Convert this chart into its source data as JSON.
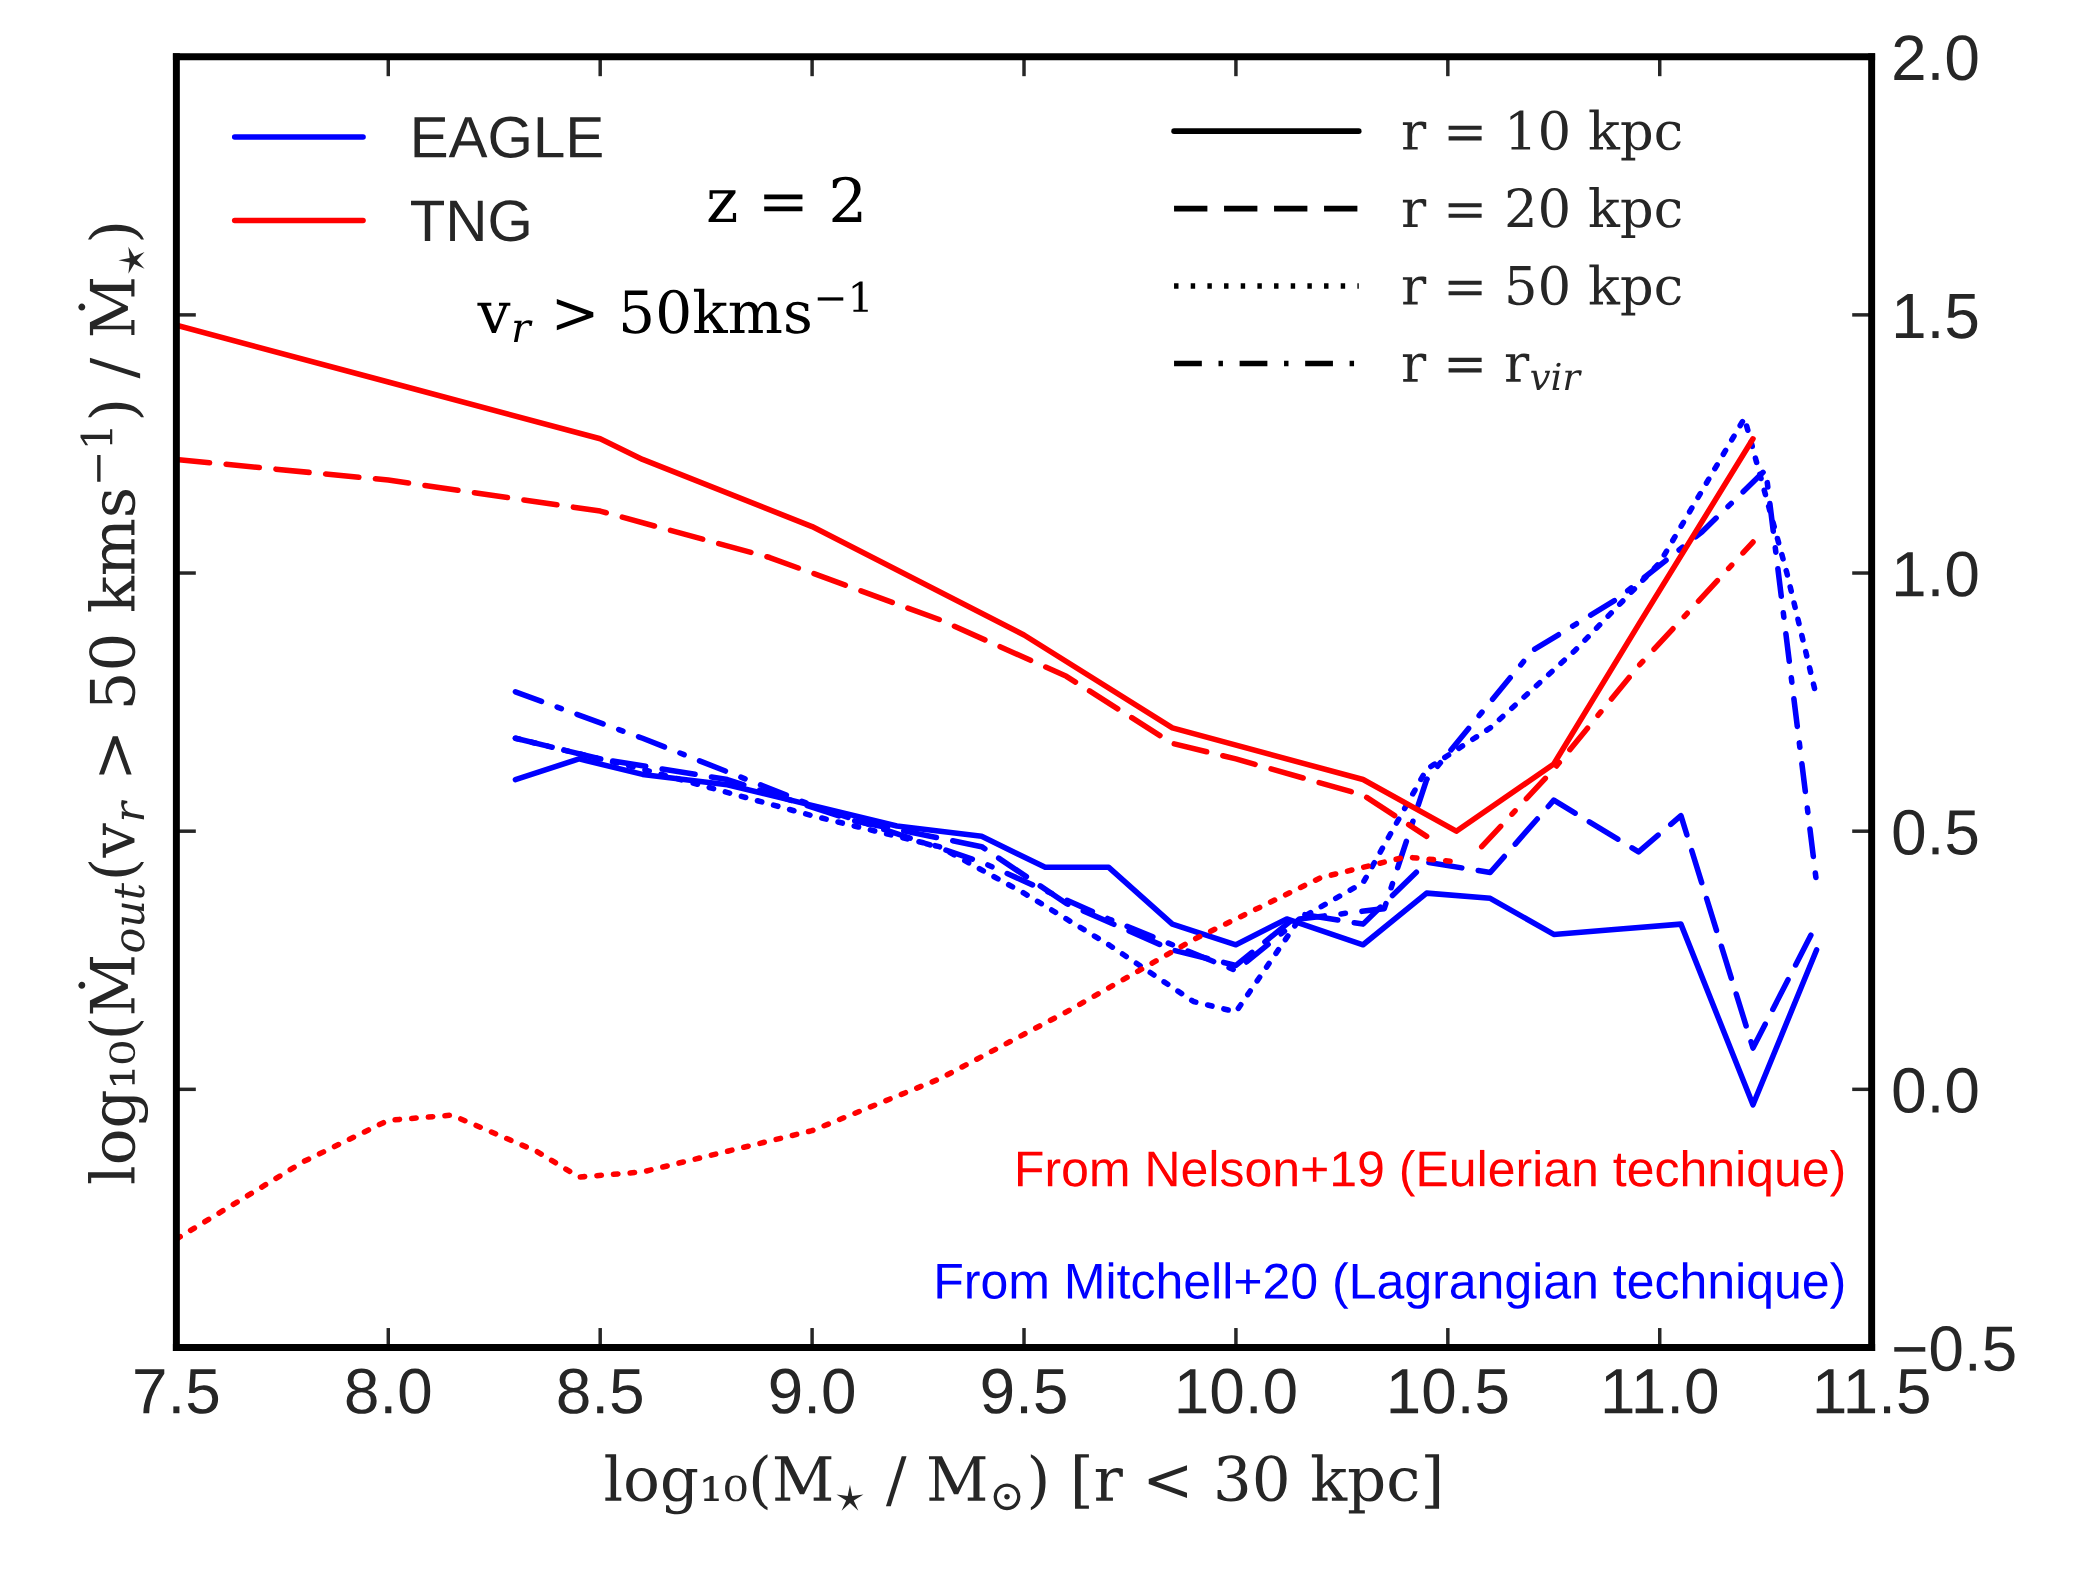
{
  "chart_data": {
    "type": "line",
    "xlabel": "log₁₀(M$_{⋆}$ / M$_{⊙}$) [r < 30 kpc]",
    "ylabel": "log₁₀(Ṁ$_{out}$(v$_{r}$ > 50 kms$^{−1}$) / Ṁ$_{⋆}$)",
    "xlim": [
      7.5,
      11.5
    ],
    "xticks": [
      7.5,
      {
        "value": 8,
        "label": "8.0"
      },
      8.5,
      {
        "value": 9,
        "label": "9.0"
      },
      9.5,
      {
        "value": 10,
        "label": "10.0"
      },
      10.5,
      {
        "value": 11,
        "label": "11.0"
      },
      11.5
    ],
    "ylim": [
      -0.5,
      2.0
    ],
    "yticks": [
      {
        "value": -0.5,
        "label": "−0.5"
      },
      {
        "value": 0,
        "label": "0.0"
      },
      {
        "value": 0.5,
        "label": "0.5"
      },
      {
        "value": 1.0,
        "label": "1.0"
      },
      {
        "value": 1.5,
        "label": "1.5"
      },
      {
        "value": 2.0,
        "label": "2.0"
      }
    ],
    "grid": false,
    "legend": "top left",
    "annotations": [
      "z = 2",
      "v$_{r}$ > 50kms$^{−1}$",
      "From Nelson+19 (Eulerian technique)",
      "From Mitchell+20 (Lagrangian technique)"
    ],
    "series": [
      {
        "name": "EAGLE",
        "color": "#0000ff",
        "line_style": "solid",
        "x": [
          8.3,
          8.45,
          8.6,
          8.8,
          9.0,
          9.2,
          9.4,
          9.55,
          9.7,
          9.85,
          10.0,
          10.12,
          10.3,
          10.45,
          10.6,
          10.75,
          10.9,
          11.05,
          11.22,
          11.37
        ],
        "values": [
          0.6,
          0.64,
          0.61,
          0.59,
          0.55,
          0.51,
          0.49,
          0.43,
          0.43,
          0.32,
          0.28,
          0.33,
          0.28,
          0.38,
          0.37,
          0.3,
          0.31,
          0.32,
          -0.03,
          0.27
        ]
      },
      {
        "color": "#0000ff",
        "line_style": "dashed",
        "x": [
          8.3,
          8.5,
          8.8,
          9.1,
          9.4,
          9.6,
          9.85,
          10.0,
          10.15,
          10.3,
          10.45,
          10.6,
          10.75,
          10.95,
          11.05,
          11.22,
          11.37
        ],
        "values": [
          0.68,
          0.64,
          0.6,
          0.52,
          0.47,
          0.36,
          0.27,
          0.24,
          0.34,
          0.32,
          0.44,
          0.42,
          0.56,
          0.46,
          0.53,
          0.08,
          0.32
        ]
      },
      {
        "color": "#0000ff",
        "line_style": "dotted",
        "x": [
          8.3,
          8.6,
          9.0,
          9.3,
          9.5,
          9.7,
          9.9,
          10.0,
          10.15,
          10.3,
          10.45,
          10.6,
          10.8,
          11.0,
          11.2,
          11.3,
          11.37
        ],
        "values": [
          0.68,
          0.62,
          0.53,
          0.47,
          0.38,
          0.28,
          0.17,
          0.15,
          0.33,
          0.4,
          0.62,
          0.7,
          0.85,
          1.02,
          1.3,
          1.0,
          0.76
        ]
      },
      {
        "color": "#0000ff",
        "line_style": "dashdot",
        "x": [
          8.3,
          8.6,
          9.0,
          9.4,
          9.7,
          9.85,
          10.0,
          10.15,
          10.35,
          10.45,
          10.7,
          10.9,
          11.1,
          11.25,
          11.37
        ],
        "values": [
          0.77,
          0.68,
          0.55,
          0.44,
          0.33,
          0.28,
          0.23,
          0.33,
          0.35,
          0.6,
          0.85,
          0.95,
          1.08,
          1.2,
          0.4
        ]
      },
      {
        "name": "TNG",
        "color": "#ff0000",
        "line_style": "solid",
        "x": [
          7.5,
          8.0,
          8.5,
          8.6,
          9.0,
          9.5,
          9.85,
          10.3,
          10.52,
          10.75,
          10.95,
          11.22
        ],
        "values": [
          1.48,
          1.37,
          1.26,
          1.22,
          1.09,
          0.88,
          0.7,
          0.6,
          0.5,
          0.63,
          0.9,
          1.26
        ]
      },
      {
        "color": "#ff0000",
        "line_style": "dashed",
        "x": [
          7.5,
          8.0,
          8.5,
          8.9,
          9.3,
          9.6,
          9.85,
          10.0,
          10.3,
          10.45
        ],
        "values": [
          1.22,
          1.18,
          1.12,
          1.03,
          0.91,
          0.8,
          0.67,
          0.64,
          0.57,
          0.49
        ]
      },
      {
        "color": "#ff0000",
        "line_style": "dotted",
        "x": [
          7.5,
          7.8,
          8.0,
          8.15,
          8.35,
          8.45,
          8.6,
          9.0,
          9.3,
          9.6,
          9.9,
          10.2,
          10.4,
          10.53
        ],
        "values": [
          -0.29,
          -0.14,
          -0.06,
          -0.05,
          -0.12,
          -0.17,
          -0.16,
          -0.08,
          0.02,
          0.15,
          0.29,
          0.41,
          0.45,
          0.44
        ]
      },
      {
        "color": "#ff0000",
        "line_style": "dashdot",
        "x": [
          10.58,
          10.75,
          10.95,
          11.22
        ],
        "values": [
          0.47,
          0.62,
          0.82,
          1.06
        ]
      },
      {
        "name": "r = 10 kpc",
        "color": "#000000",
        "line_style": "solid"
      },
      {
        "name": "r = 20 kpc",
        "color": "#000000",
        "line_style": "dashed"
      },
      {
        "name": "r = 50 kpc",
        "color": "#000000",
        "line_style": "dotted"
      },
      {
        "name": "r = r$_{vir}$",
        "color": "#000000",
        "line_style": "dashdot"
      }
    ]
  }
}
